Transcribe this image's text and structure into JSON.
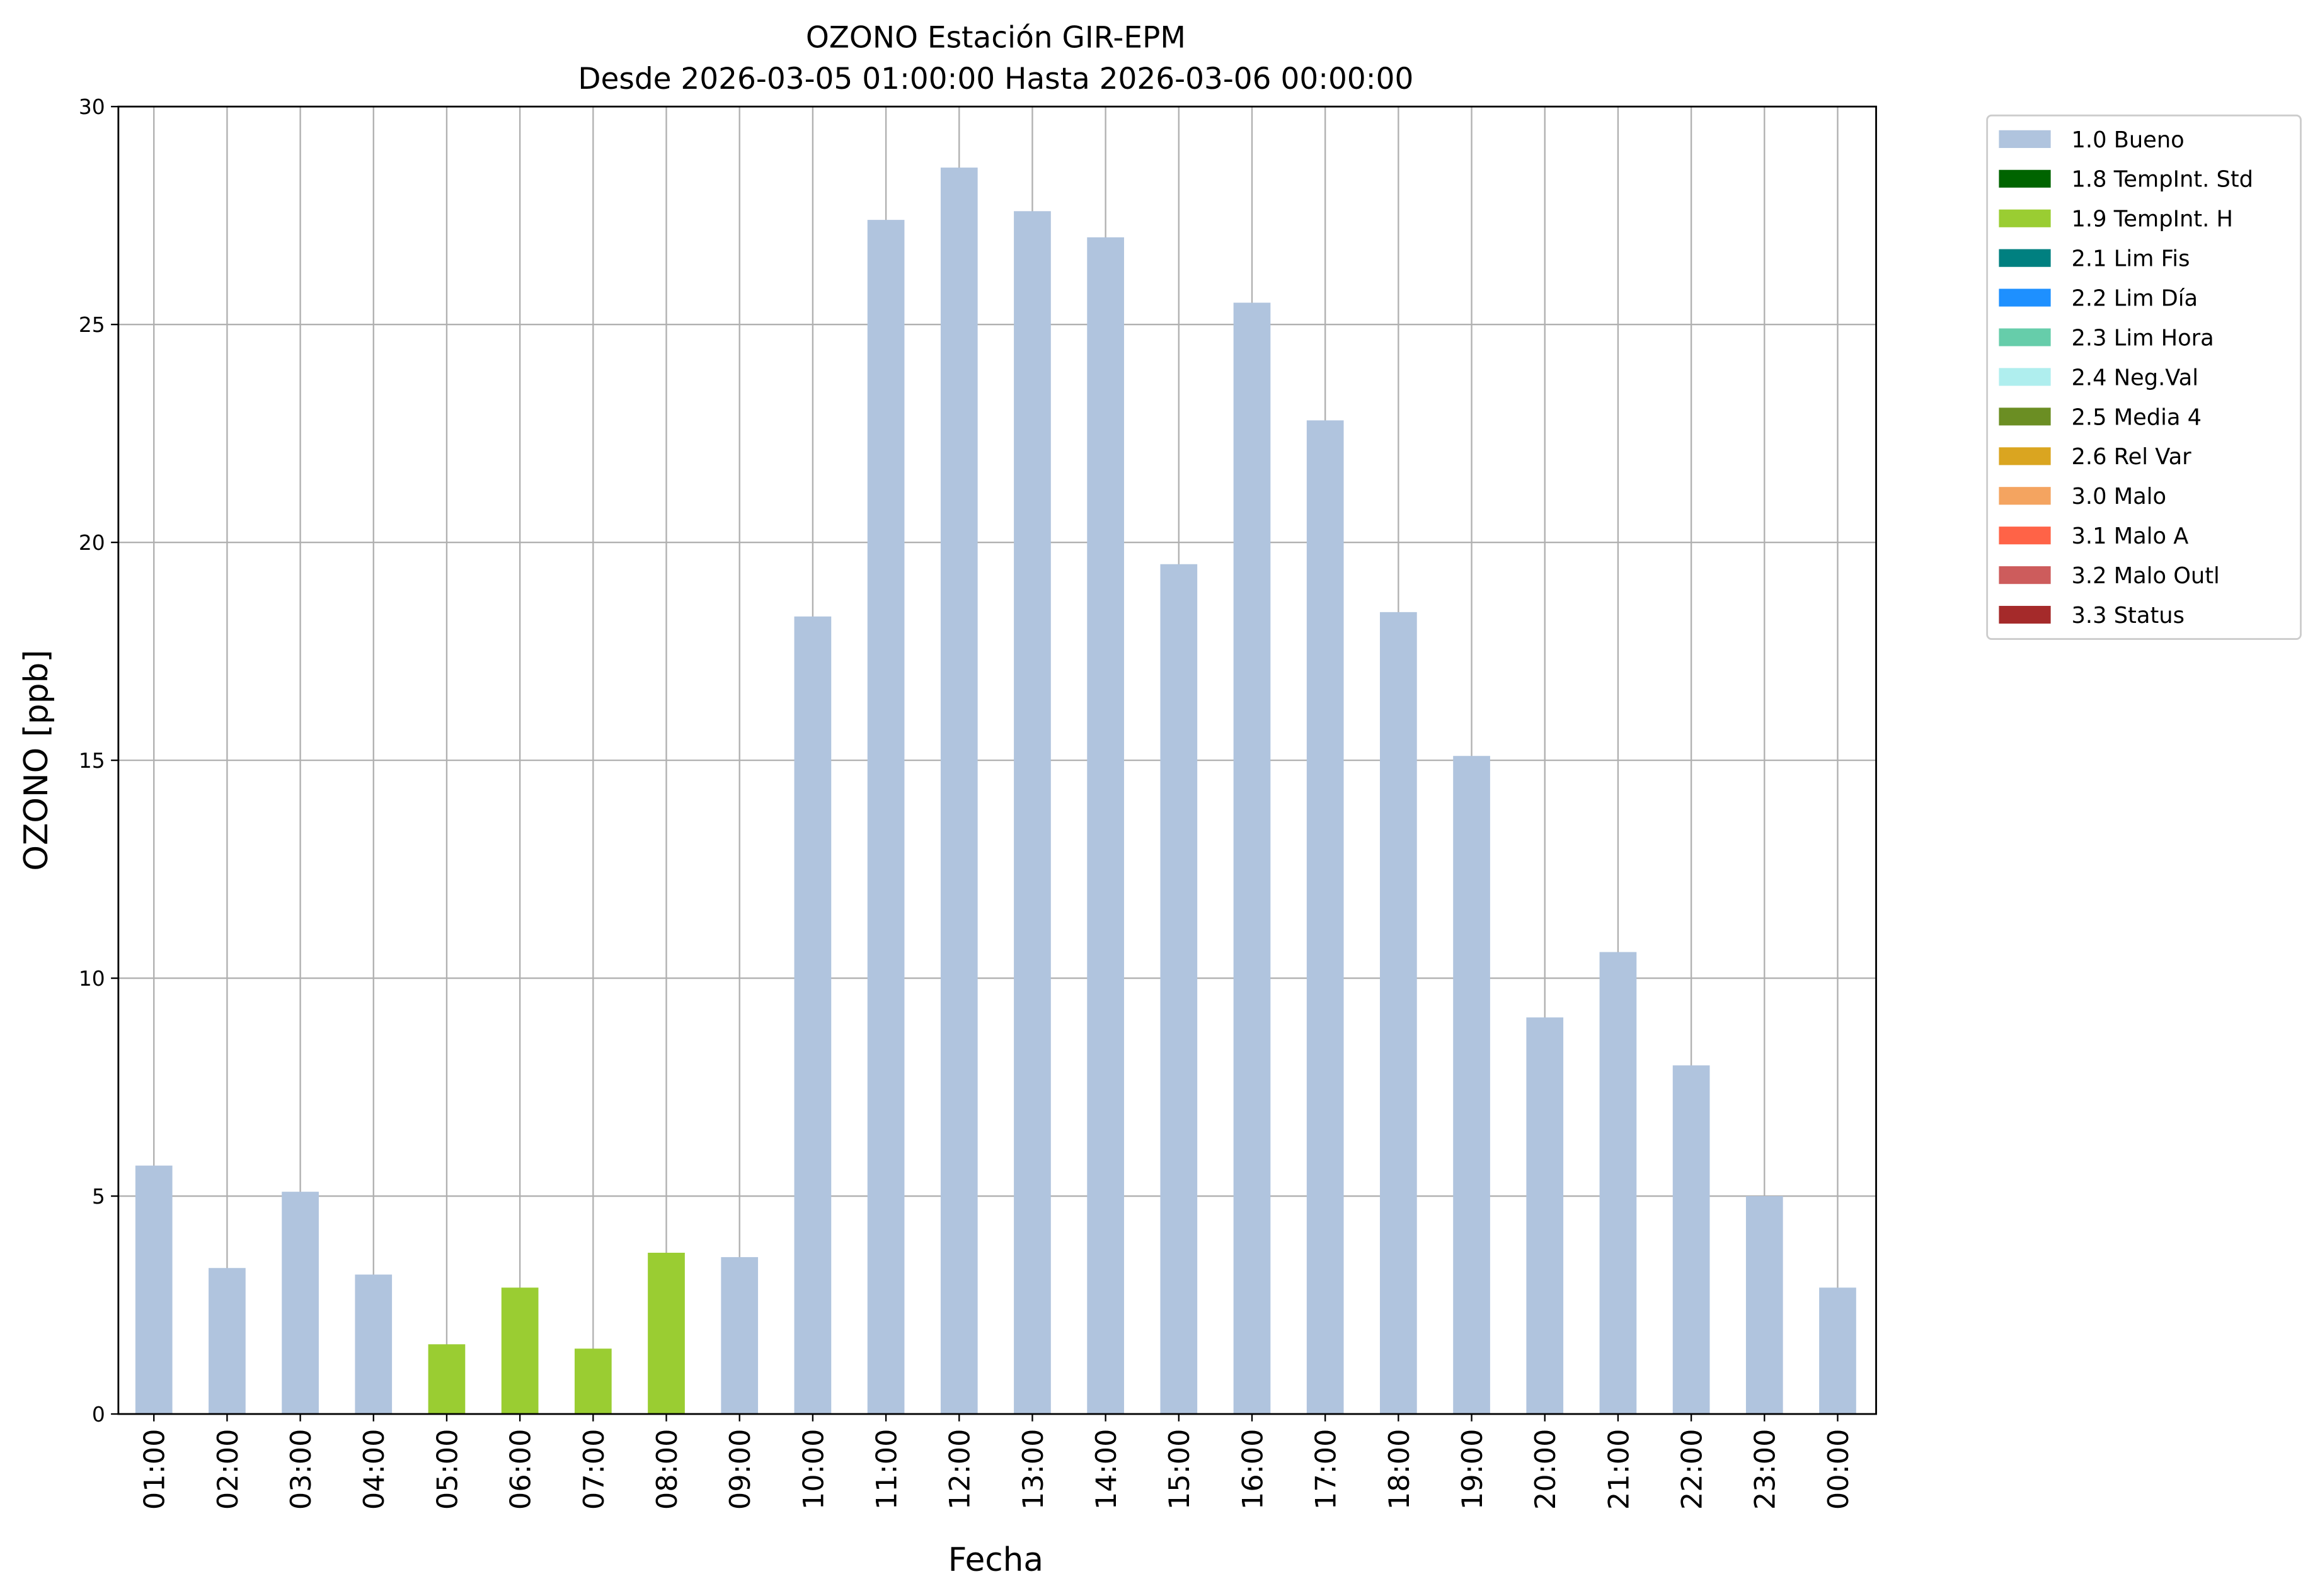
{
  "chart_data": {
    "type": "bar",
    "title": "OZONO Estación GIR-EPM",
    "subtitle": "Desde 2026-03-05 01:00:00 Hasta 2026-03-06 00:00:00",
    "xlabel": "Fecha",
    "ylabel": "OZONO [ppb]",
    "ylim": [
      0,
      30
    ],
    "yticks": [
      0,
      5,
      10,
      15,
      20,
      25,
      30
    ],
    "grid": true,
    "legend_position": "outside-top-right",
    "categories": [
      "01:00",
      "02:00",
      "03:00",
      "04:00",
      "05:00",
      "06:00",
      "07:00",
      "08:00",
      "09:00",
      "10:00",
      "11:00",
      "12:00",
      "13:00",
      "14:00",
      "15:00",
      "16:00",
      "17:00",
      "18:00",
      "19:00",
      "20:00",
      "21:00",
      "22:00",
      "23:00",
      "00:00"
    ],
    "values": [
      5.7,
      3.35,
      5.1,
      3.2,
      1.6,
      2.9,
      1.5,
      3.7,
      3.6,
      18.3,
      27.4,
      28.6,
      27.6,
      27.0,
      19.5,
      25.5,
      22.8,
      18.4,
      15.1,
      9.1,
      10.6,
      8.0,
      5.0,
      2.9
    ],
    "flags": [
      "1.0 Bueno",
      "1.0 Bueno",
      "1.0 Bueno",
      "1.0 Bueno",
      "1.9 TempInt. H",
      "1.9 TempInt. H",
      "1.9 TempInt. H",
      "1.9 TempInt. H",
      "1.0 Bueno",
      "1.0 Bueno",
      "1.0 Bueno",
      "1.0 Bueno",
      "1.0 Bueno",
      "1.0 Bueno",
      "1.0 Bueno",
      "1.0 Bueno",
      "1.0 Bueno",
      "1.0 Bueno",
      "1.0 Bueno",
      "1.0 Bueno",
      "1.0 Bueno",
      "1.0 Bueno",
      "1.0 Bueno",
      "1.0 Bueno"
    ],
    "legend": [
      {
        "name": "1.0 Bueno",
        "color": "#b0c4de"
      },
      {
        "name": "1.8 TempInt. Std",
        "color": "#006400"
      },
      {
        "name": "1.9 TempInt. H",
        "color": "#9acd32"
      },
      {
        "name": "2.1 Lim Fis",
        "color": "#008080"
      },
      {
        "name": "2.2 Lim Día",
        "color": "#1e90ff"
      },
      {
        "name": "2.3 Lim Hora",
        "color": "#66cdaa"
      },
      {
        "name": "2.4 Neg.Val",
        "color": "#afeeee"
      },
      {
        "name": "2.5 Media 4",
        "color": "#6b8e23"
      },
      {
        "name": "2.6 Rel Var",
        "color": "#daa520"
      },
      {
        "name": "3.0 Malo",
        "color": "#f4a460"
      },
      {
        "name": "3.1 Malo A",
        "color": "#ff6347"
      },
      {
        "name": "3.2 Malo Outl",
        "color": "#cd5c5c"
      },
      {
        "name": "3.3 Status",
        "color": "#a52a2a"
      }
    ]
  }
}
